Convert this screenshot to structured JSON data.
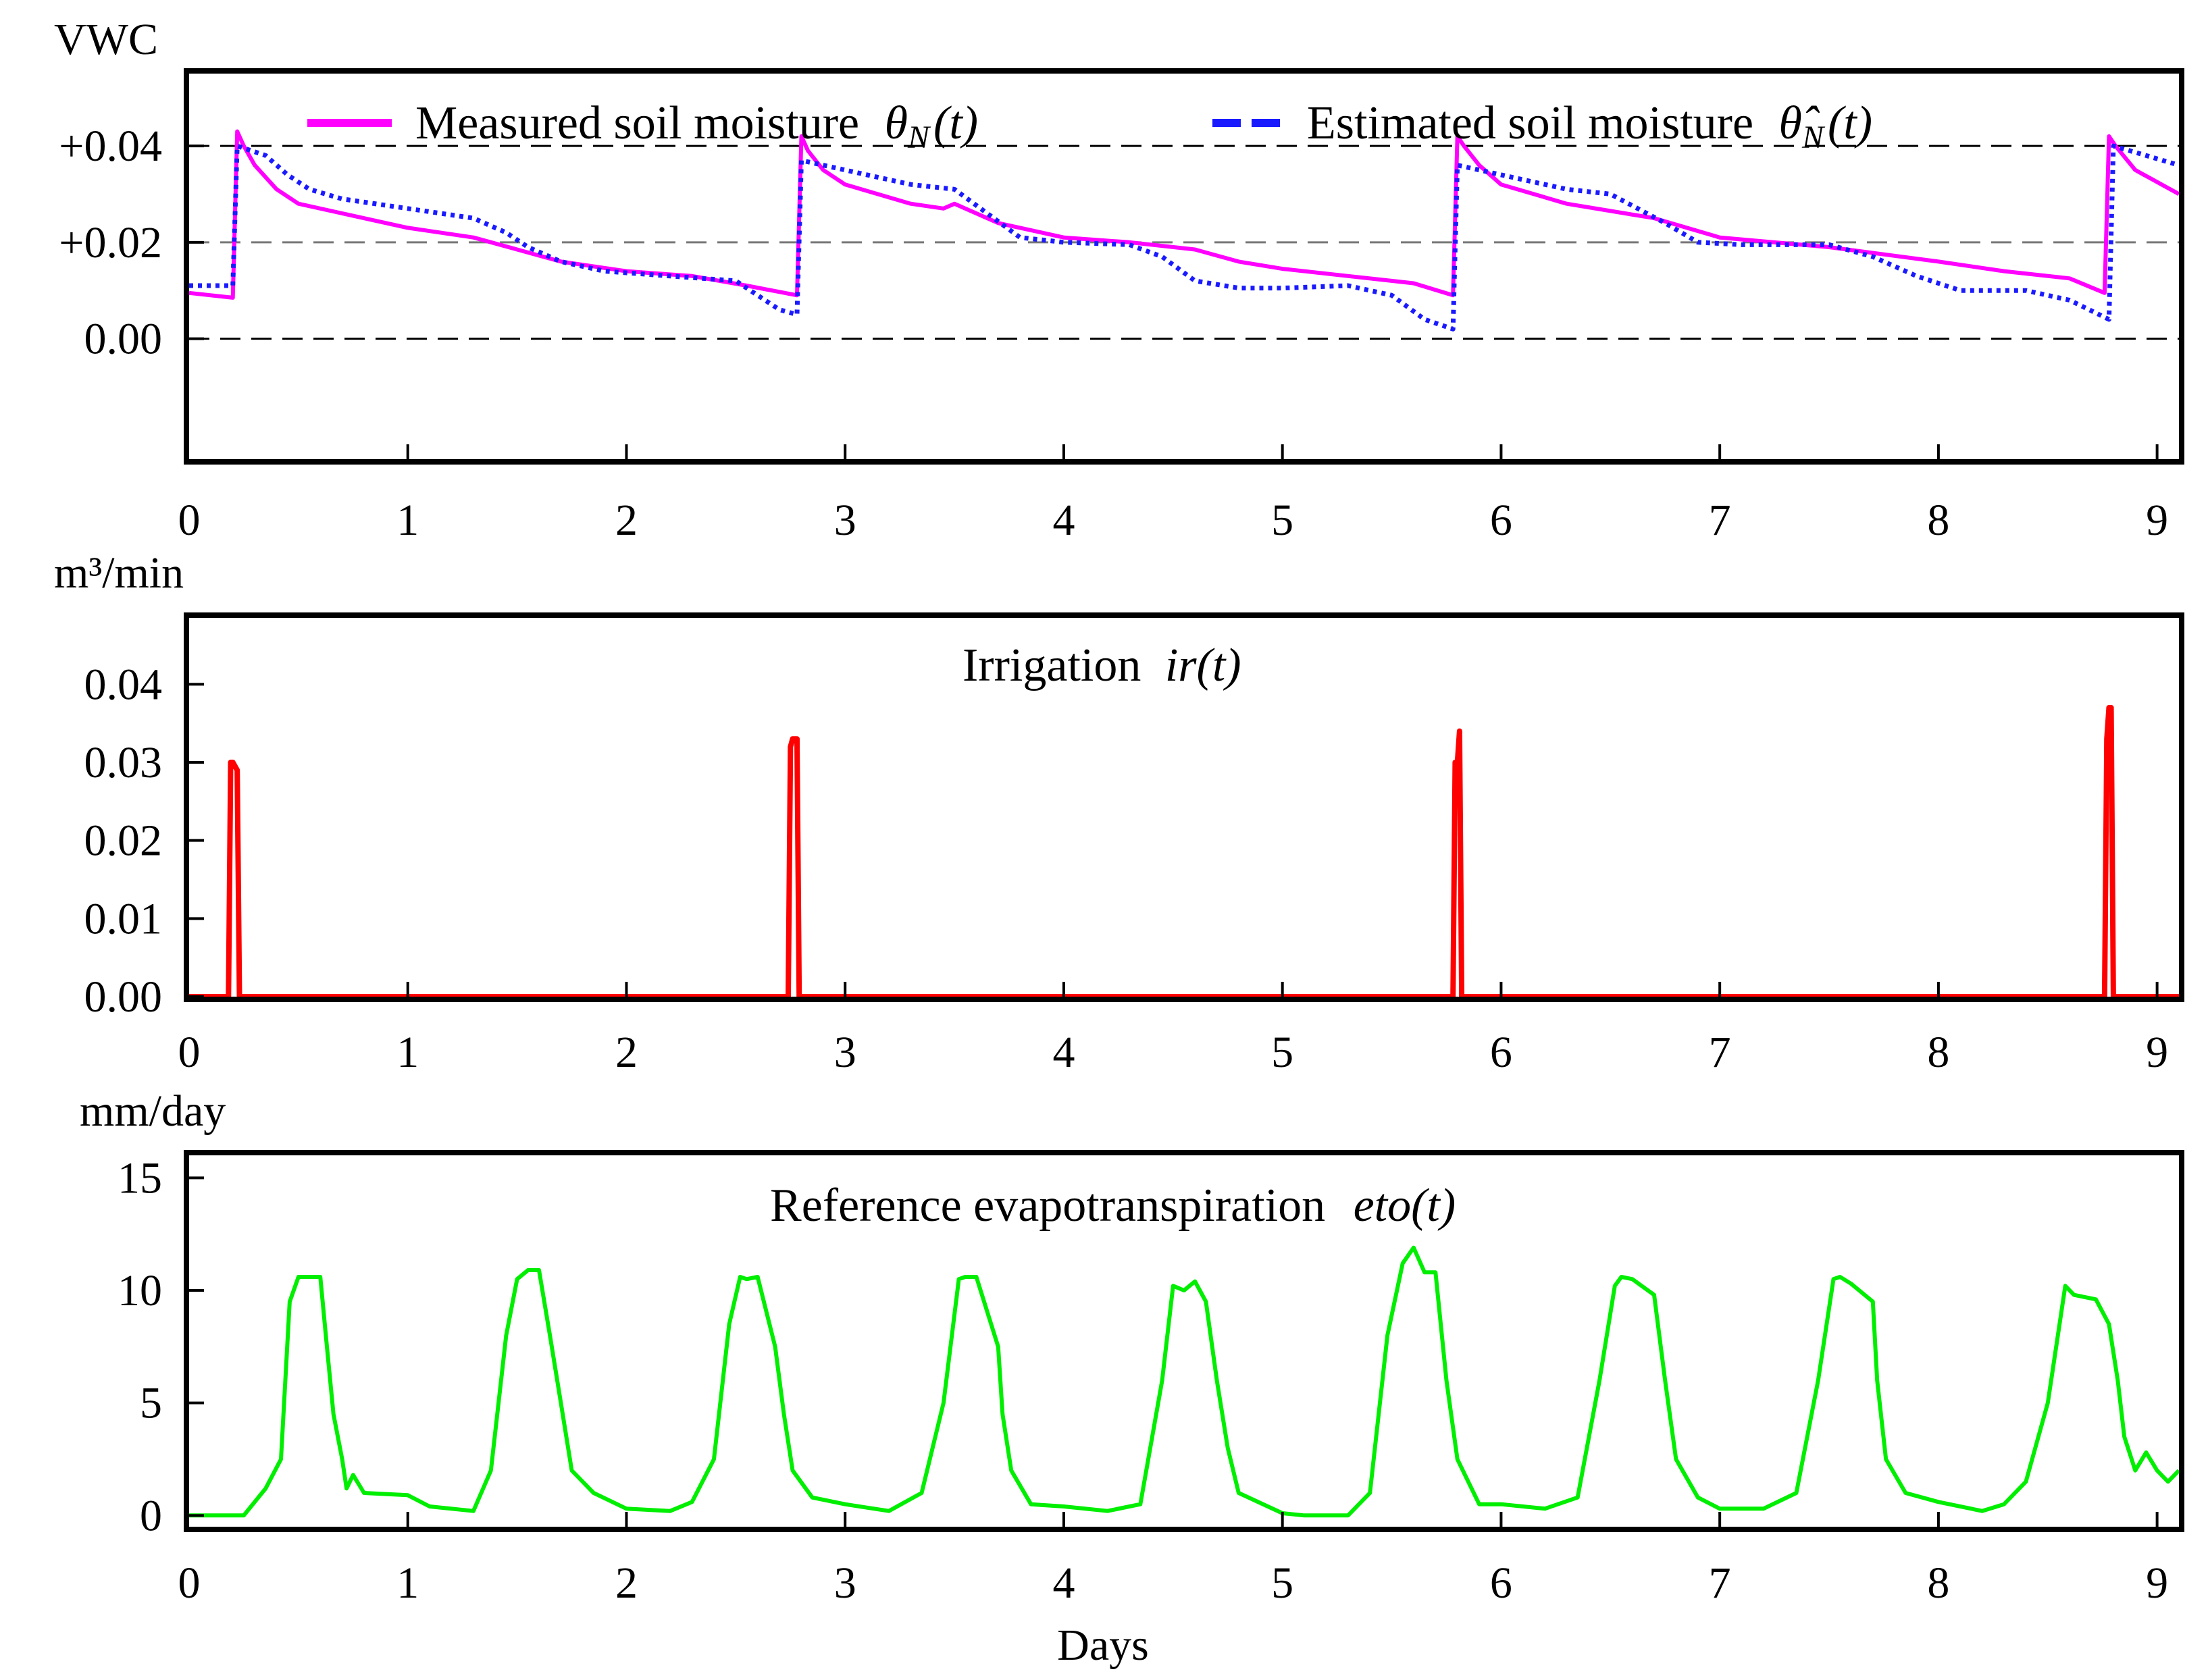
{
  "xlabel": "Days",
  "chart_data": [
    {
      "type": "line",
      "ylabel": "VWC",
      "yticks": [
        "+0.04",
        "+0.02",
        "0.00"
      ],
      "ytick_values": [
        0.04,
        0.02,
        0.0
      ],
      "ylim": [
        -0.025,
        0.055
      ],
      "xlim": [
        0,
        9.1
      ],
      "xticks": [
        "0",
        "1",
        "2",
        "3",
        "4",
        "5",
        "6",
        "7",
        "8",
        "9"
      ],
      "reference_lines": [
        0.04,
        0.02,
        0.0
      ],
      "series": [
        {
          "name": "Measured soil moisture",
          "symbol": "θ",
          "sub": "N",
          "arg": "(t)",
          "color": "#ff00ff",
          "style": "solid",
          "x": [
            0,
            0.2,
            0.22,
            0.25,
            0.3,
            0.4,
            0.5,
            0.7,
            1.0,
            1.3,
            1.5,
            1.7,
            2.0,
            2.3,
            2.55,
            2.78,
            2.8,
            2.83,
            2.9,
            3.0,
            3.3,
            3.45,
            3.5,
            3.7,
            4.0,
            4.3,
            4.6,
            4.8,
            5.0,
            5.3,
            5.6,
            5.78,
            5.8,
            5.83,
            5.9,
            6.0,
            6.3,
            6.7,
            7.0,
            7.5,
            8.0,
            8.3,
            8.6,
            8.76,
            8.78,
            8.81,
            8.9,
            9.1
          ],
          "values": [
            0.0095,
            0.0085,
            0.043,
            0.04,
            0.036,
            0.031,
            0.028,
            0.026,
            0.023,
            0.021,
            0.0185,
            0.016,
            0.014,
            0.013,
            0.011,
            0.009,
            0.042,
            0.039,
            0.035,
            0.032,
            0.028,
            0.027,
            0.028,
            0.024,
            0.021,
            0.02,
            0.0185,
            0.016,
            0.0145,
            0.013,
            0.0115,
            0.009,
            0.042,
            0.04,
            0.036,
            0.032,
            0.028,
            0.025,
            0.021,
            0.019,
            0.016,
            0.014,
            0.0125,
            0.0095,
            0.042,
            0.04,
            0.035,
            0.03
          ]
        },
        {
          "name": "Estimated soil moisture",
          "symbol": "θ̂",
          "sub": "N",
          "arg": "(t)",
          "color": "#1a1aff",
          "style": "dotted",
          "x": [
            0,
            0.2,
            0.22,
            0.35,
            0.45,
            0.55,
            0.7,
            1.0,
            1.3,
            1.45,
            1.55,
            1.7,
            1.9,
            2.2,
            2.5,
            2.7,
            2.78,
            2.8,
            3.0,
            3.3,
            3.5,
            3.65,
            3.8,
            4.0,
            4.3,
            4.45,
            4.6,
            4.8,
            5.0,
            5.3,
            5.5,
            5.65,
            5.78,
            5.8,
            6.0,
            6.3,
            6.5,
            6.75,
            6.9,
            7.1,
            7.5,
            7.7,
            7.9,
            8.1,
            8.4,
            8.6,
            8.78,
            8.8,
            9.1
          ],
          "values": [
            0.011,
            0.011,
            0.04,
            0.038,
            0.034,
            0.031,
            0.029,
            0.027,
            0.025,
            0.022,
            0.019,
            0.016,
            0.014,
            0.013,
            0.012,
            0.006,
            0.005,
            0.037,
            0.035,
            0.032,
            0.031,
            0.026,
            0.021,
            0.02,
            0.0195,
            0.017,
            0.012,
            0.0105,
            0.0105,
            0.011,
            0.009,
            0.004,
            0.002,
            0.036,
            0.034,
            0.031,
            0.03,
            0.024,
            0.02,
            0.0195,
            0.0195,
            0.017,
            0.013,
            0.01,
            0.01,
            0.008,
            0.004,
            0.04,
            0.036
          ]
        }
      ]
    },
    {
      "type": "line",
      "ylabel": "m³/min",
      "title": "Irrigation",
      "title_math": "ir(t)",
      "yticks": [
        "0.04",
        "0.03",
        "0.02",
        "0.01",
        "0.00"
      ],
      "ytick_values": [
        0.04,
        0.03,
        0.02,
        0.01,
        0.0
      ],
      "ylim": [
        0,
        0.0485
      ],
      "xlim": [
        0,
        9.1
      ],
      "xticks": [
        "0",
        "1",
        "2",
        "3",
        "4",
        "5",
        "6",
        "7",
        "8",
        "9"
      ],
      "series": [
        {
          "name": "Irrigation",
          "color": "#ff0000",
          "x": [
            0,
            0.18,
            0.19,
            0.2,
            0.22,
            0.23,
            2.74,
            2.75,
            2.76,
            2.78,
            2.79,
            5.78,
            5.79,
            5.8,
            5.81,
            5.82,
            8.76,
            8.77,
            8.78,
            8.79,
            8.8,
            9.1
          ],
          "values": [
            0,
            0,
            0.03,
            0.03,
            0.029,
            0,
            0,
            0.032,
            0.033,
            0.033,
            0,
            0,
            0.03,
            0.03,
            0.034,
            0,
            0,
            0.033,
            0.037,
            0.037,
            0,
            0
          ]
        }
      ]
    },
    {
      "type": "line",
      "ylabel": "mm/day",
      "title": "Reference evapotranspiration",
      "title_math": "eto(t)",
      "yticks": [
        "15",
        "10",
        "5",
        "0"
      ],
      "ytick_values": [
        15,
        10,
        5,
        0
      ],
      "ylim": [
        -0.5,
        16
      ],
      "xlim": [
        0,
        9.1
      ],
      "xticks": [
        "0",
        "1",
        "2",
        "3",
        "4",
        "5",
        "6",
        "7",
        "8",
        "9"
      ],
      "series": [
        {
          "name": "Reference evapotranspiration",
          "color": "#00ee00",
          "x": [
            0,
            0.25,
            0.35,
            0.42,
            0.46,
            0.5,
            0.6,
            0.63,
            0.66,
            0.7,
            0.72,
            0.75,
            0.8,
            1.0,
            1.1,
            1.3,
            1.38,
            1.45,
            1.5,
            1.55,
            1.6,
            1.65,
            1.7,
            1.75,
            1.85,
            2.0,
            2.2,
            2.3,
            2.4,
            2.47,
            2.52,
            2.55,
            2.6,
            2.68,
            2.72,
            2.76,
            2.85,
            3.0,
            3.2,
            3.35,
            3.45,
            3.52,
            3.55,
            3.6,
            3.7,
            3.72,
            3.76,
            3.85,
            4.0,
            4.2,
            4.35,
            4.45,
            4.5,
            4.55,
            4.6,
            4.65,
            4.7,
            4.75,
            4.8,
            5.0,
            5.1,
            5.3,
            5.4,
            5.48,
            5.55,
            5.6,
            5.65,
            5.7,
            5.75,
            5.8,
            5.9,
            6.0,
            6.2,
            6.35,
            6.45,
            6.52,
            6.55,
            6.6,
            6.7,
            6.75,
            6.8,
            6.9,
            7.0,
            7.2,
            7.35,
            7.45,
            7.52,
            7.55,
            7.6,
            7.7,
            7.72,
            7.76,
            7.85,
            8.0,
            8.2,
            8.3,
            8.4,
            8.5,
            8.58,
            8.62,
            8.72,
            8.78,
            8.82,
            8.85,
            8.9,
            8.95,
            9.0,
            9.05,
            9.1
          ],
          "values": [
            0,
            0,
            1.2,
            2.5,
            9.5,
            10.6,
            10.6,
            7.5,
            4.5,
            2.5,
            1.2,
            1.8,
            1.0,
            0.9,
            0.4,
            0.2,
            2.0,
            8.0,
            10.5,
            10.9,
            10.9,
            8.0,
            5.0,
            2.0,
            1.0,
            0.3,
            0.2,
            0.6,
            2.5,
            8.5,
            10.6,
            10.5,
            10.6,
            7.5,
            4.5,
            2.0,
            0.8,
            0.5,
            0.2,
            1.0,
            5.0,
            10.5,
            10.6,
            10.6,
            7.5,
            4.5,
            2.0,
            0.5,
            0.4,
            0.2,
            0.5,
            6.0,
            10.2,
            10.0,
            10.4,
            9.5,
            6.0,
            3.0,
            1.0,
            0.1,
            0.0,
            0.0,
            1.0,
            8.0,
            11.2,
            11.9,
            10.8,
            10.8,
            6.0,
            2.5,
            0.5,
            0.5,
            0.3,
            0.8,
            6.0,
            10.2,
            10.6,
            10.5,
            9.8,
            6.0,
            2.5,
            0.8,
            0.3,
            0.3,
            1.0,
            6.0,
            10.5,
            10.6,
            10.3,
            9.5,
            6.0,
            2.5,
            1.0,
            0.6,
            0.2,
            0.5,
            1.5,
            5.0,
            10.2,
            9.8,
            9.6,
            8.5,
            6.0,
            3.5,
            2.0,
            2.8,
            2.0,
            1.5,
            2.0
          ]
        }
      ]
    }
  ]
}
